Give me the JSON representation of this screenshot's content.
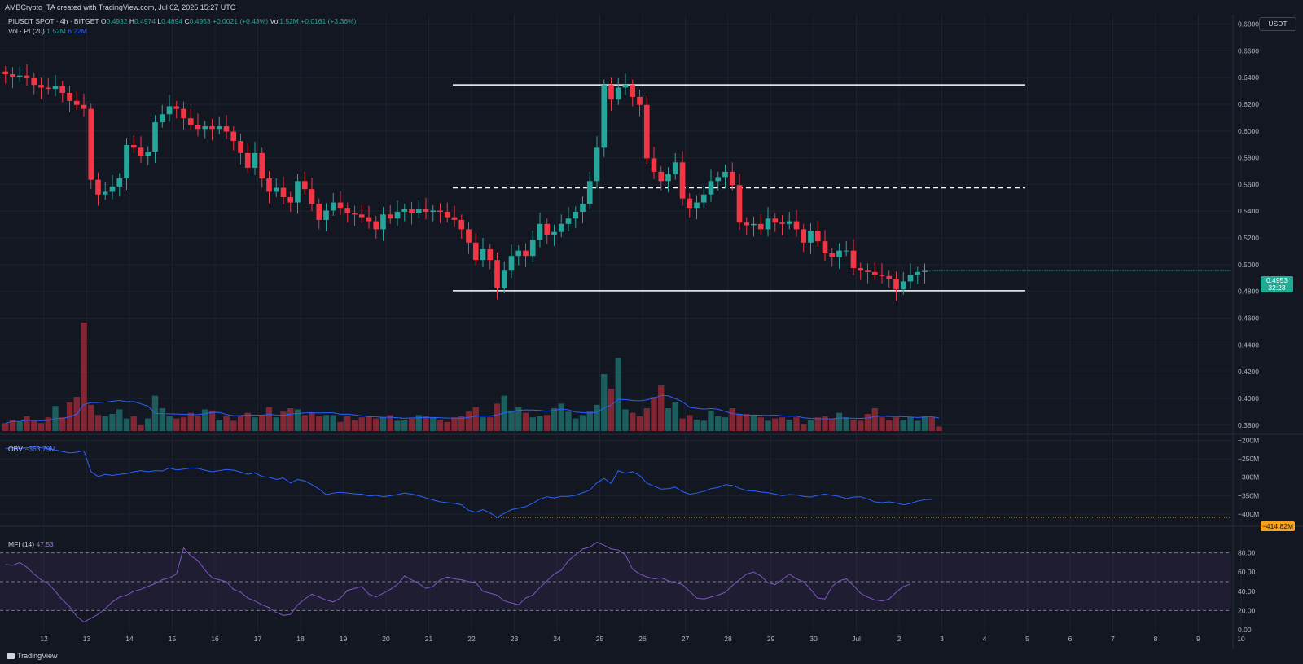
{
  "header": {
    "attribution": "AMBCrypto_TA created with TradingView.com, Jul 02, 2025 15:27 UTC",
    "symbol": "PIUSDT SPOT · 4h · BITGET",
    "open_label": "O",
    "open": "0.4932",
    "high_label": "H",
    "high": "0.4974",
    "low_label": "L",
    "low": "0.4894",
    "close_label": "C",
    "close": "0.4953",
    "change": "+0.0021 (+0.43%)",
    "vol_label": "Vol",
    "vol_value": "1.52M",
    "vol_change": "+0.0161 (+3.36%)",
    "vol_indicator_label": "Vol · PI (20)",
    "vol_indicator_value1": "1.52M",
    "vol_indicator_value2": "6.22M",
    "currency": "USDT"
  },
  "price_badge": {
    "price": "0.4953",
    "countdown": "32:23"
  },
  "obv": {
    "label": "OBV",
    "value": "−363.79M",
    "badge": "−414.82M"
  },
  "mfi": {
    "label": "MFI (14)",
    "value": "47.53"
  },
  "footer": {
    "brand": "TradingView"
  },
  "colors": {
    "up": "#26a69a",
    "down": "#f23645",
    "background": "#131722",
    "grid": "#1e222d",
    "obv_line": "#2962ff",
    "mfi_line": "#7e57c2",
    "mfi_band": "#7e57c2",
    "level_line": "#ffffff",
    "obv_marker": "#f7a21b"
  },
  "chart_data": [
    {
      "type": "candlestick",
      "timeframe": "4h",
      "y_axis_ticks": [
        "0.6800",
        "0.6600",
        "0.6400",
        "0.6200",
        "0.6000",
        "0.5800",
        "0.5600",
        "0.5400",
        "0.5200",
        "0.5000",
        "0.4800",
        "0.4600",
        "0.4400",
        "0.4200",
        "0.4000",
        "0.3800"
      ],
      "ylim": [
        0.375,
        0.687
      ],
      "x_axis_ticks": [
        "12",
        "13",
        "14",
        "15",
        "16",
        "17",
        "18",
        "19",
        "20",
        "21",
        "22",
        "23",
        "24",
        "25",
        "26",
        "27",
        "28",
        "29",
        "30",
        "Jul",
        "2",
        "3",
        "4",
        "5",
        "6",
        "7",
        "8",
        "9",
        "10"
      ],
      "candles_per_day": 6,
      "first_candle_day": 11.1,
      "series": [
        {
          "name": "PIUSDT",
          "close": [
            0.6425,
            0.6405,
            0.6415,
            0.6395,
            0.6345,
            0.6325,
            0.6315,
            0.6335,
            0.6285,
            0.6225,
            0.6195,
            0.6165,
            0.5635,
            0.5525,
            0.5545,
            0.5585,
            0.5645,
            0.5895,
            0.5875,
            0.5815,
            0.5845,
            0.6065,
            0.6125,
            0.6185,
            0.6165,
            0.6095,
            0.6045,
            0.6015,
            0.6035,
            0.6015,
            0.6035,
            0.5995,
            0.5925,
            0.5835,
            0.5725,
            0.5835,
            0.5645,
            0.5545,
            0.5575,
            0.5505,
            0.5465,
            0.5625,
            0.5565,
            0.5455,
            0.5335,
            0.5405,
            0.5465,
            0.5425,
            0.5385,
            0.5375,
            0.5355,
            0.5325,
            0.5265,
            0.5375,
            0.5345,
            0.5395,
            0.5415,
            0.5385,
            0.5415,
            0.5395,
            0.5405,
            0.5395,
            0.5355,
            0.5335,
            0.5265,
            0.5165,
            0.5035,
            0.5115,
            0.5035,
            0.4825,
            0.4955,
            0.5065,
            0.5105,
            0.5065,
            0.5185,
            0.5305,
            0.5225,
            0.5245,
            0.5305,
            0.5345,
            0.5395,
            0.5455,
            0.5625,
            0.5875,
            0.6345,
            0.6235,
            0.6325,
            0.6345,
            0.6255,
            0.6195,
            0.5795,
            0.5695,
            0.5625,
            0.5675,
            0.5765,
            0.5495,
            0.5425,
            0.5465,
            0.5525,
            0.5625,
            0.5655,
            0.5695,
            0.5595,
            0.5315,
            0.5295,
            0.5305,
            0.5265,
            0.5345,
            0.5315,
            0.5305,
            0.5325,
            0.5265,
            0.5165,
            0.5255,
            0.5175,
            0.5085,
            0.5055,
            0.5105,
            0.5105,
            0.4975,
            0.4955,
            0.4945,
            0.4925,
            0.4915,
            0.4895,
            0.4815,
            0.4875,
            0.4925,
            0.4945,
            0.4953
          ]
        }
      ],
      "annotations": [
        {
          "kind": "horizontal_level",
          "price": 0.6345,
          "style": "solid",
          "color": "#ffffff"
        },
        {
          "kind": "horizontal_level",
          "price": 0.5575,
          "style": "dashed",
          "color": "#ffffff"
        },
        {
          "kind": "horizontal_level",
          "price": 0.4805,
          "style": "solid",
          "color": "#ffffff"
        }
      ]
    },
    {
      "type": "bar",
      "name": "Volume",
      "relative_volume": [
        0.07,
        0.1,
        0.08,
        0.13,
        0.09,
        0.07,
        0.12,
        0.22,
        0.12,
        0.25,
        0.3,
        0.95,
        0.23,
        0.14,
        0.13,
        0.15,
        0.19,
        0.11,
        0.13,
        0.05,
        0.11,
        0.31,
        0.2,
        0.13,
        0.11,
        0.12,
        0.16,
        0.13,
        0.19,
        0.18,
        0.1,
        0.13,
        0.09,
        0.14,
        0.16,
        0.12,
        0.14,
        0.21,
        0.12,
        0.17,
        0.2,
        0.19,
        0.14,
        0.16,
        0.13,
        0.14,
        0.14,
        0.08,
        0.13,
        0.1,
        0.12,
        0.13,
        0.11,
        0.12,
        0.14,
        0.09,
        0.1,
        0.11,
        0.14,
        0.13,
        0.12,
        0.1,
        0.08,
        0.12,
        0.13,
        0.17,
        0.21,
        0.12,
        0.12,
        0.24,
        0.31,
        0.18,
        0.21,
        0.16,
        0.12,
        0.13,
        0.14,
        0.2,
        0.24,
        0.17,
        0.11,
        0.14,
        0.17,
        0.23,
        0.5,
        0.37,
        0.64,
        0.19,
        0.16,
        0.13,
        0.2,
        0.3,
        0.4,
        0.2,
        0.25,
        0.11,
        0.14,
        0.1,
        0.09,
        0.18,
        0.13,
        0.12,
        0.2,
        0.15,
        0.15,
        0.14,
        0.12,
        0.09,
        0.11,
        0.12,
        0.1,
        0.12,
        0.06,
        0.1,
        0.12,
        0.13,
        0.11,
        0.16,
        0.12,
        0.1,
        0.09,
        0.15,
        0.2,
        0.12,
        0.1,
        0.12,
        0.1,
        0.12,
        0.09,
        0.13,
        0.12,
        0.04
      ]
    },
    {
      "type": "line",
      "name": "OBV",
      "y_axis_ticks": [
        "−200M",
        "−250M",
        "−300M",
        "−350M",
        "−400M"
      ],
      "ylim": [
        -420,
        -190
      ],
      "values": [
        -222,
        -220,
        -222,
        -220,
        -218,
        -220,
        -222,
        -226,
        -230,
        -234,
        -232,
        -228,
        -285,
        -298,
        -292,
        -295,
        -292,
        -290,
        -285,
        -282,
        -285,
        -282,
        -283,
        -275,
        -280,
        -278,
        -275,
        -276,
        -281,
        -285,
        -282,
        -279,
        -281,
        -286,
        -292,
        -288,
        -298,
        -300,
        -306,
        -302,
        -316,
        -306,
        -310,
        -320,
        -332,
        -347,
        -343,
        -341,
        -343,
        -345,
        -346,
        -351,
        -349,
        -353,
        -350,
        -347,
        -343,
        -346,
        -350,
        -356,
        -362,
        -367,
        -369,
        -371,
        -375,
        -390,
        -395,
        -388,
        -397,
        -409,
        -398,
        -388,
        -384,
        -380,
        -371,
        -359,
        -353,
        -356,
        -352,
        -352,
        -349,
        -342,
        -335,
        -315,
        -303,
        -317,
        -282,
        -289,
        -285,
        -295,
        -316,
        -324,
        -332,
        -331,
        -327,
        -339,
        -346,
        -343,
        -338,
        -331,
        -328,
        -320,
        -322,
        -330,
        -336,
        -337,
        -340,
        -342,
        -346,
        -350,
        -347,
        -348,
        -352,
        -354,
        -349,
        -346,
        -349,
        -352,
        -358,
        -354,
        -353,
        -359,
        -367,
        -369,
        -367,
        -370,
        -375,
        -371,
        -365,
        -361,
        -360
      ]
    },
    {
      "type": "line",
      "name": "MFI (14)",
      "y_axis_ticks": [
        "80.00",
        "60.00",
        "40.00",
        "20.00",
        "0.00"
      ],
      "ylim": [
        0,
        100
      ],
      "bands": [
        20,
        50,
        80
      ],
      "values": [
        68,
        67,
        70,
        65,
        58,
        52,
        48,
        40,
        31,
        24,
        14,
        8,
        12,
        16,
        22,
        29,
        34,
        36,
        40,
        42,
        45,
        48,
        52,
        54,
        58,
        85,
        77,
        72,
        62,
        54,
        52,
        50,
        42,
        39,
        33,
        30,
        26,
        23,
        18,
        15,
        16,
        26,
        32,
        37,
        34,
        31,
        29,
        33,
        41,
        43,
        45,
        37,
        34,
        38,
        42,
        47,
        56,
        52,
        48,
        43,
        45,
        52,
        55,
        53,
        52,
        50,
        49,
        40,
        38,
        36,
        30,
        28,
        26,
        33,
        36,
        44,
        51,
        58,
        62,
        72,
        78,
        84,
        86,
        91,
        88,
        84,
        83,
        78,
        63,
        58,
        55,
        53,
        54,
        51,
        49,
        47,
        40,
        33,
        32,
        34,
        36,
        39,
        46,
        52,
        58,
        60,
        56,
        49,
        47,
        52,
        58,
        53,
        50,
        42,
        33,
        32,
        45,
        51,
        53,
        46,
        38,
        34,
        31,
        30,
        32,
        39,
        45,
        47.53
      ]
    }
  ]
}
